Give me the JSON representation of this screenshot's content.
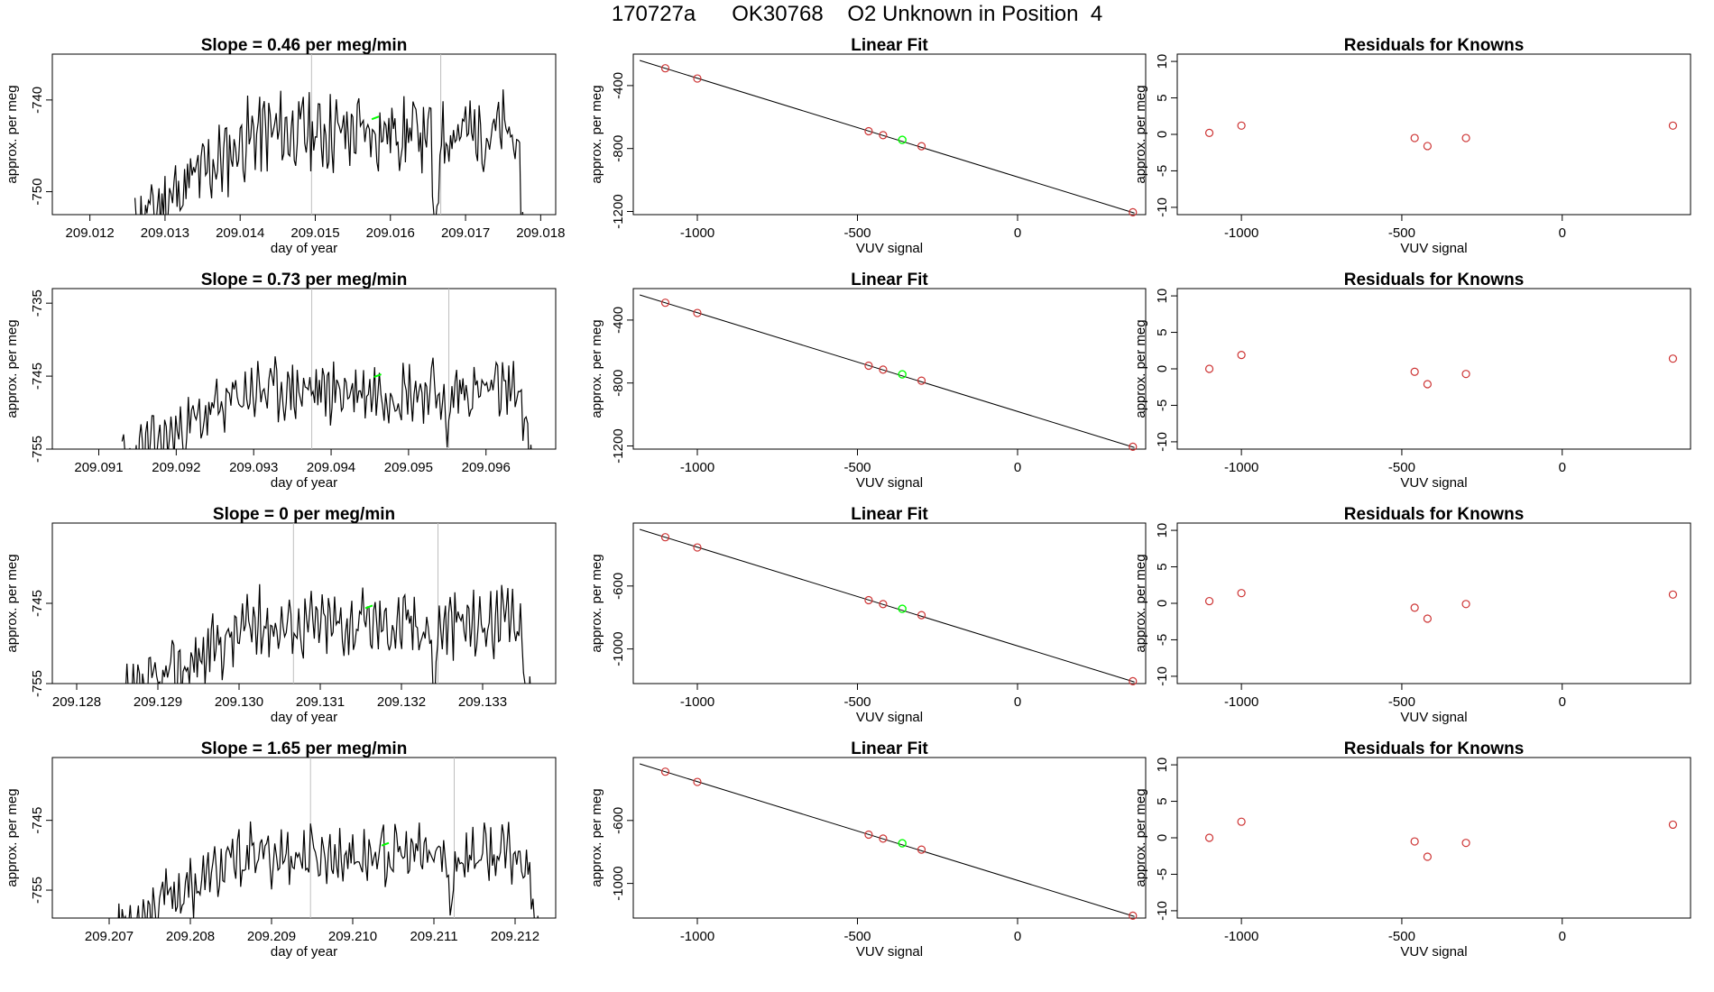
{
  "figure": {
    "title": "170727a      OK30768    O2 Unknown in Position  4"
  },
  "colors": {
    "trace": "#000000",
    "highlight": "#00ff00",
    "points": "#cd3333",
    "marker_lines": "#bebebe"
  },
  "chart_data": [
    {
      "type": "line",
      "panel": "time-series-1",
      "title": "Slope =  0.46  per meg/min",
      "xlabel": "day of year",
      "ylabel": "approx. per meg",
      "xlim": [
        209.0115,
        209.0182
      ],
      "ylim": [
        -752.5,
        -735
      ],
      "xticks": [
        209.012,
        209.013,
        209.014,
        209.015,
        209.016,
        209.017,
        209.018
      ],
      "xtick_labels": [
        "209.012",
        "209.013",
        "209.014",
        "209.015",
        "209.016",
        "209.017",
        "209.018"
      ],
      "yticks": [
        -740,
        -750
      ],
      "ytick_labels": [
        "-740",
        "-750"
      ],
      "vlines": [
        209.01495,
        209.01667
      ],
      "x_start": 209.0126,
      "x_end": 209.0178,
      "base": -743.5,
      "seed": 11,
      "dips": [
        {
          "x": 209.0166,
          "depth": 14
        }
      ],
      "highlight": {
        "x": 209.0158,
        "y": -742
      }
    },
    {
      "type": "scatter",
      "panel": "linear-fit-1",
      "title": "Linear Fit",
      "xlabel": "VUV signal",
      "ylabel": "approx. per meg",
      "xlim": [
        -1200,
        400
      ],
      "ylim": [
        -1220,
        -200
      ],
      "xticks": [
        -1000,
        -500,
        0
      ],
      "xtick_labels": [
        "-1000",
        "-500",
        "0"
      ],
      "yticks": [
        -400,
        -800,
        -1200
      ],
      "ytick_labels": [
        "-400",
        "-800",
        "-1200"
      ],
      "points": [
        [
          -1100,
          -290
        ],
        [
          -1000,
          -355
        ],
        [
          -465,
          -690
        ],
        [
          -420,
          -715
        ],
        [
          -300,
          -785
        ],
        [
          360,
          -1205
        ]
      ],
      "highlight": [
        -360,
        -745
      ],
      "fit_line": [
        [
          -1180,
          -240
        ],
        [
          365,
          -1210
        ]
      ]
    },
    {
      "type": "scatter",
      "panel": "residuals-1",
      "title": "Residuals for Knowns",
      "xlabel": "VUV signal",
      "ylabel": "approx. per meg",
      "xlim": [
        -1200,
        400
      ],
      "ylim": [
        -11,
        11
      ],
      "xticks": [
        -1000,
        -500,
        0
      ],
      "xtick_labels": [
        "-1000",
        "-500",
        "0"
      ],
      "yticks": [
        10,
        5,
        0,
        -5,
        -10
      ],
      "ytick_labels": [
        "10",
        "5",
        "0",
        "-5",
        "-10"
      ],
      "points": [
        [
          -1100,
          0.2
        ],
        [
          -1000,
          1.2
        ],
        [
          -460,
          -0.5
        ],
        [
          -420,
          -1.6
        ],
        [
          -300,
          -0.5
        ],
        [
          345,
          1.2
        ]
      ]
    },
    {
      "type": "line",
      "panel": "time-series-2",
      "title": "Slope =  0.73  per meg/min",
      "xlabel": "day of year",
      "ylabel": "approx. per meg",
      "xlim": [
        209.0904,
        209.0969
      ],
      "ylim": [
        -755,
        -733
      ],
      "xticks": [
        209.091,
        209.092,
        209.093,
        209.094,
        209.095,
        209.096
      ],
      "xtick_labels": [
        "209.091",
        "209.092",
        "209.093",
        "209.094",
        "209.095",
        "209.096"
      ],
      "yticks": [
        -735,
        -745,
        -755
      ],
      "ytick_labels": [
        "-735",
        "-745",
        "-755"
      ],
      "vlines": [
        209.09375,
        209.09552
      ],
      "x_start": 209.0913,
      "x_end": 209.0966,
      "base": -747,
      "seed": 23,
      "dips": [
        {
          "x": 209.0955,
          "depth": 8
        }
      ],
      "highlight": {
        "x": 209.0946,
        "y": -745
      }
    },
    {
      "type": "scatter",
      "panel": "linear-fit-2",
      "title": "Linear Fit",
      "xlabel": "VUV signal",
      "ylabel": "approx. per meg",
      "xlim": [
        -1200,
        400
      ],
      "ylim": [
        -1220,
        -200
      ],
      "xticks": [
        -1000,
        -500,
        0
      ],
      "xtick_labels": [
        "-1000",
        "-500",
        "0"
      ],
      "yticks": [
        -400,
        -800,
        -1200
      ],
      "ytick_labels": [
        "-400",
        "-800",
        "-1200"
      ],
      "points": [
        [
          -1100,
          -290
        ],
        [
          -1000,
          -355
        ],
        [
          -465,
          -690
        ],
        [
          -420,
          -715
        ],
        [
          -300,
          -785
        ],
        [
          360,
          -1205
        ]
      ],
      "highlight": [
        -360,
        -745
      ],
      "fit_line": [
        [
          -1180,
          -240
        ],
        [
          365,
          -1210
        ]
      ]
    },
    {
      "type": "scatter",
      "panel": "residuals-2",
      "title": "Residuals for Knowns",
      "xlabel": "VUV signal",
      "ylabel": "approx. per meg",
      "xlim": [
        -1200,
        400
      ],
      "ylim": [
        -11,
        11
      ],
      "xticks": [
        -1000,
        -500,
        0
      ],
      "xtick_labels": [
        "-1000",
        "-500",
        "0"
      ],
      "yticks": [
        10,
        5,
        0,
        -5,
        -10
      ],
      "ytick_labels": [
        "10",
        "5",
        "0",
        "-5",
        "-10"
      ],
      "points": [
        [
          -1100,
          0.0
        ],
        [
          -1000,
          1.9
        ],
        [
          -460,
          -0.4
        ],
        [
          -420,
          -2.1
        ],
        [
          -300,
          -0.7
        ],
        [
          345,
          1.4
        ]
      ]
    },
    {
      "type": "line",
      "panel": "time-series-3",
      "title": "Slope =  0",
      "title_unit": "  per meg/min",
      "xlabel": "day of year",
      "ylabel": "approx. per meg",
      "xlim": [
        209.1277,
        209.1339
      ],
      "ylim": [
        -755,
        -735
      ],
      "xticks": [
        209.128,
        209.129,
        209.13,
        209.131,
        209.132,
        209.133
      ],
      "xtick_labels": [
        "209.128",
        "209.129",
        "209.130",
        "209.131",
        "209.132",
        "209.133"
      ],
      "yticks": [
        -745,
        -755
      ],
      "ytick_labels": [
        "-745",
        "-755"
      ],
      "vlines": [
        209.13067,
        209.13245
      ],
      "x_start": 209.1286,
      "x_end": 209.1336,
      "base": -747.5,
      "seed": 37,
      "dips": [
        {
          "x": 209.1324,
          "depth": 9
        }
      ],
      "highlight": {
        "x": 209.1316,
        "y": -745.5
      }
    },
    {
      "type": "scatter",
      "panel": "linear-fit-3",
      "title": "Linear Fit",
      "xlabel": "VUV signal",
      "ylabel": "approx. per meg",
      "xlim": [
        -1200,
        400
      ],
      "ylim": [
        -1220,
        -200
      ],
      "xticks": [
        -1000,
        -500,
        0
      ],
      "xtick_labels": [
        "-1000",
        "-500",
        "0"
      ],
      "yticks": [
        -600,
        -1000
      ],
      "ytick_labels": [
        "-600",
        "-1000"
      ],
      "points": [
        [
          -1100,
          -290
        ],
        [
          -1000,
          -355
        ],
        [
          -465,
          -690
        ],
        [
          -420,
          -715
        ],
        [
          -300,
          -785
        ],
        [
          360,
          -1205
        ]
      ],
      "highlight": [
        -360,
        -745
      ],
      "fit_line": [
        [
          -1180,
          -240
        ],
        [
          365,
          -1210
        ]
      ]
    },
    {
      "type": "scatter",
      "panel": "residuals-3",
      "title": "Residuals for Knowns",
      "xlabel": "VUV signal",
      "ylabel": "approx. per meg",
      "xlim": [
        -1200,
        400
      ],
      "ylim": [
        -11,
        11
      ],
      "xticks": [
        -1000,
        -500,
        0
      ],
      "xtick_labels": [
        "-1000",
        "-500",
        "0"
      ],
      "yticks": [
        10,
        5,
        0,
        -5,
        -10
      ],
      "ytick_labels": [
        "10",
        "5",
        "0",
        "-5",
        "-10"
      ],
      "points": [
        [
          -1100,
          0.3
        ],
        [
          -1000,
          1.4
        ],
        [
          -460,
          -0.6
        ],
        [
          -420,
          -2.1
        ],
        [
          -300,
          -0.1
        ],
        [
          345,
          1.2
        ]
      ]
    },
    {
      "type": "line",
      "panel": "time-series-4",
      "title": "Slope =  1.65  per meg/min",
      "xlabel": "day of year",
      "ylabel": "approx. per meg",
      "xlim": [
        209.2063,
        209.2125
      ],
      "ylim": [
        -759,
        -736
      ],
      "xticks": [
        209.207,
        209.208,
        209.209,
        209.21,
        209.211,
        209.212
      ],
      "xtick_labels": [
        "209.207",
        "209.208",
        "209.209",
        "209.210",
        "209.211",
        "209.212"
      ],
      "yticks": [
        -745,
        -755
      ],
      "ytick_labels": [
        "-745",
        "-755"
      ],
      "vlines": [
        209.20948,
        209.21125
      ],
      "x_start": 209.2071,
      "x_end": 209.2123,
      "base": -750,
      "seed": 53,
      "dips": [
        {
          "x": 209.2112,
          "depth": 8
        }
      ],
      "highlight": {
        "x": 209.2104,
        "y": -748.5
      }
    },
    {
      "type": "scatter",
      "panel": "linear-fit-4",
      "title": "Linear Fit",
      "xlabel": "VUV signal",
      "ylabel": "approx. per meg",
      "xlim": [
        -1200,
        400
      ],
      "ylim": [
        -1220,
        -200
      ],
      "xticks": [
        -1000,
        -500,
        0
      ],
      "xtick_labels": [
        "-1000",
        "-500",
        "0"
      ],
      "yticks": [
        -600,
        -1000
      ],
      "ytick_labels": [
        "-600",
        "-1000"
      ],
      "points": [
        [
          -1100,
          -290
        ],
        [
          -1000,
          -355
        ],
        [
          -465,
          -690
        ],
        [
          -420,
          -715
        ],
        [
          -300,
          -785
        ],
        [
          360,
          -1205
        ]
      ],
      "highlight": [
        -360,
        -745
      ],
      "fit_line": [
        [
          -1180,
          -240
        ],
        [
          365,
          -1210
        ]
      ]
    },
    {
      "type": "scatter",
      "panel": "residuals-4",
      "title": "Residuals for Knowns",
      "xlabel": "VUV signal",
      "ylabel": "approx. per meg",
      "xlim": [
        -1200,
        400
      ],
      "ylim": [
        -11,
        11
      ],
      "xticks": [
        -1000,
        -500,
        0
      ],
      "xtick_labels": [
        "-1000",
        "-500",
        "0"
      ],
      "yticks": [
        10,
        5,
        0,
        -5,
        -10
      ],
      "ytick_labels": [
        "10",
        "5",
        "0",
        "-5",
        "-10"
      ],
      "points": [
        [
          -1100,
          0.0
        ],
        [
          -1000,
          2.2
        ],
        [
          -460,
          -0.5
        ],
        [
          -420,
          -2.6
        ],
        [
          -300,
          -0.7
        ],
        [
          345,
          1.8
        ]
      ]
    }
  ]
}
